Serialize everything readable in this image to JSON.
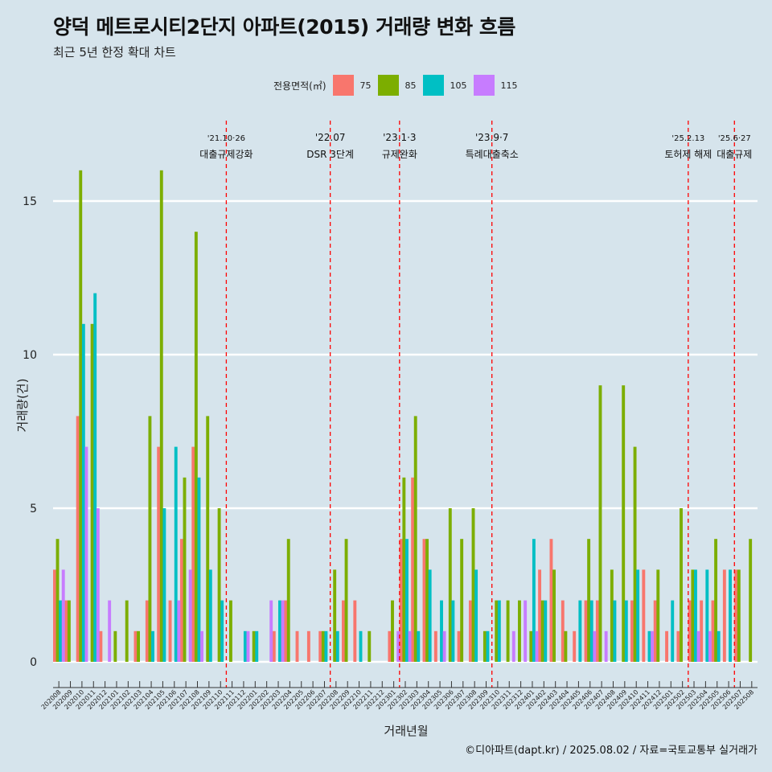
{
  "page": {
    "title": "양덕 메트로시티2단지 아파트(2015) 거래량 변화 흐름",
    "subtitle": "최근 5년 한정 확대 차트",
    "caption": "©디아파트(dapt.kr) / 2025.08.02 / 자료=국토교통부 실거래가"
  },
  "chart_data": {
    "type": "bar",
    "title": "양덕 메트로시티2단지 아파트(2015) 거래량 변화 흐름",
    "subtitle": "최근 5년 한정 확대 차트",
    "xlabel": "거래년월",
    "ylabel": "거래량(건)",
    "ylim": [
      0,
      17
    ],
    "yticks": [
      0,
      5,
      10,
      15
    ],
    "grid": true,
    "legend": {
      "title": "전용면적(㎡)",
      "position": "top"
    },
    "colors": {
      "75": "#f8766d",
      "85": "#7cae00",
      "105": "#00bfc4",
      "115": "#c77cff"
    },
    "categories": [
      "202008",
      "202009",
      "202010",
      "202011",
      "202012",
      "202101",
      "202102",
      "202103",
      "202104",
      "202105",
      "202106",
      "202107",
      "202108",
      "202109",
      "202110",
      "202111",
      "202112",
      "202201",
      "202202",
      "202203",
      "202204",
      "202205",
      "202206",
      "202207",
      "202208",
      "202209",
      "202210",
      "202211",
      "202212",
      "202301",
      "202302",
      "202303",
      "202304",
      "202305",
      "202306",
      "202307",
      "202308",
      "202309",
      "202310",
      "202311",
      "202312",
      "202401",
      "202402",
      "202403",
      "202404",
      "202405",
      "202406",
      "202407",
      "202408",
      "202409",
      "202410",
      "202411",
      "202412",
      "202501",
      "202502",
      "202503",
      "202504",
      "202505",
      "202506",
      "202507",
      "202508"
    ],
    "series": [
      {
        "name": "75",
        "values": [
          3,
          2,
          8,
          0,
          1,
          0,
          0,
          1,
          2,
          7,
          2,
          4,
          7,
          0,
          0,
          0,
          0,
          0,
          0,
          1,
          2,
          1,
          1,
          1,
          0,
          2,
          2,
          0,
          0,
          1,
          4,
          6,
          4,
          1,
          0,
          1,
          2,
          0,
          0,
          0,
          0,
          0,
          3,
          4,
          2,
          1,
          2,
          2,
          0,
          0,
          2,
          3,
          2,
          1,
          1,
          2,
          2,
          2,
          3,
          3,
          0
        ]
      },
      {
        "name": "85",
        "values": [
          4,
          2,
          16,
          11,
          0,
          1,
          2,
          1,
          8,
          16,
          0,
          6,
          14,
          8,
          5,
          2,
          0,
          1,
          0,
          0,
          4,
          0,
          0,
          1,
          3,
          4,
          0,
          1,
          0,
          2,
          6,
          8,
          4,
          0,
          5,
          4,
          5,
          1,
          2,
          2,
          2,
          1,
          2,
          3,
          1,
          0,
          4,
          9,
          3,
          9,
          7,
          0,
          3,
          0,
          5,
          3,
          0,
          4,
          0,
          3,
          4
        ]
      },
      {
        "name": "105",
        "values": [
          2,
          0,
          11,
          12,
          0,
          0,
          0,
          0,
          1,
          5,
          7,
          0,
          6,
          3,
          2,
          0,
          1,
          1,
          0,
          2,
          0,
          0,
          0,
          1,
          1,
          0,
          1,
          0,
          0,
          0,
          4,
          1,
          3,
          2,
          2,
          0,
          3,
          1,
          2,
          0,
          0,
          4,
          2,
          0,
          0,
          2,
          2,
          0,
          2,
          2,
          3,
          1,
          0,
          2,
          0,
          3,
          3,
          1,
          3,
          0,
          0
        ]
      },
      {
        "name": "115",
        "values": [
          3,
          0,
          7,
          5,
          2,
          0,
          0,
          0,
          0,
          0,
          2,
          3,
          1,
          0,
          0,
          0,
          1,
          0,
          2,
          2,
          0,
          0,
          0,
          0,
          0,
          0,
          0,
          0,
          0,
          1,
          1,
          0,
          0,
          1,
          0,
          0,
          0,
          0,
          0,
          1,
          2,
          1,
          0,
          0,
          0,
          0,
          1,
          1,
          0,
          0,
          0,
          1,
          0,
          0,
          0,
          1,
          1,
          0,
          0,
          0,
          0
        ]
      }
    ],
    "events": [
      {
        "after": "202110",
        "date": "'21.10·26",
        "label": "대출규제강화"
      },
      {
        "after": "202207",
        "date": "'22.07",
        "label": "DSR 3단계"
      },
      {
        "after": "202301",
        "date": "'23.1·3",
        "label": "규제완화"
      },
      {
        "after": "202309",
        "date": "'23.9·7",
        "label": "특례대출축소"
      },
      {
        "after": "202502",
        "date": "'25.2.13",
        "label": "토허제 해제"
      },
      {
        "after": "202506",
        "date": "'25.6·27",
        "label": "대출규제"
      }
    ]
  }
}
